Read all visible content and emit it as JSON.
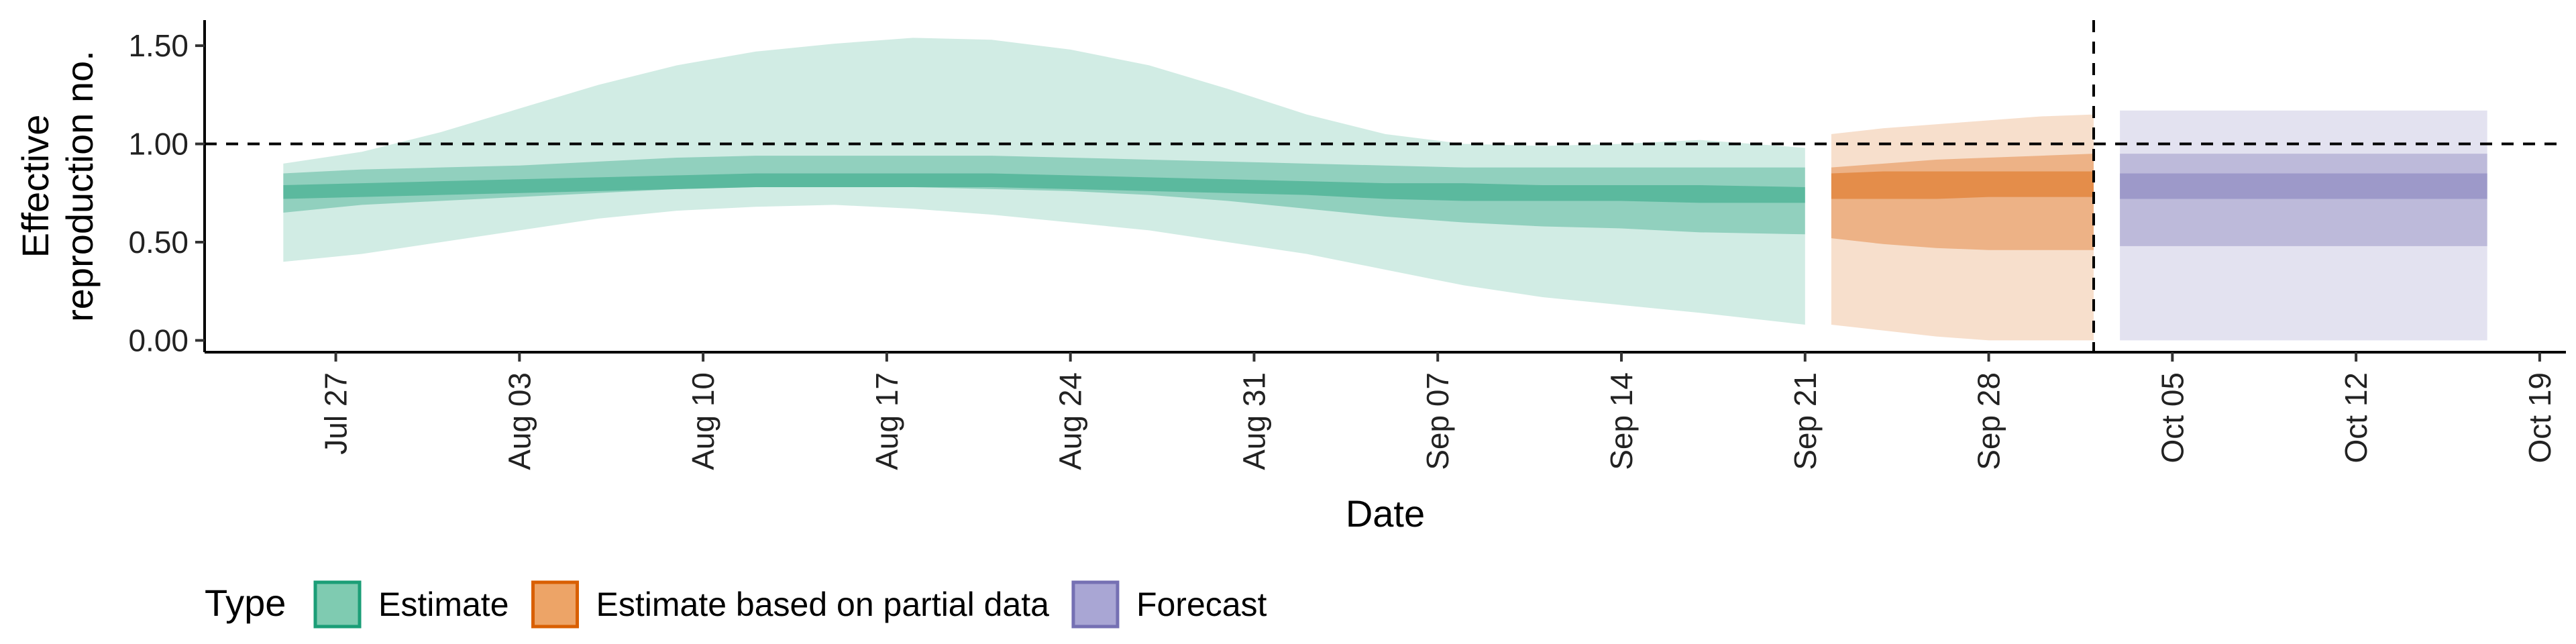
{
  "chart_data": {
    "type": "area",
    "xlabel": "Date",
    "ylabel_lines": [
      "Effective",
      "reproduction no."
    ],
    "ylim": [
      -0.06,
      1.63
    ],
    "y_ticks": [
      0.0,
      0.5,
      1.0,
      1.5
    ],
    "y_tick_labels": [
      "0.00",
      "0.50",
      "1.00",
      "1.50"
    ],
    "x_ticks": [
      "2020-07-27",
      "2020-08-03",
      "2020-08-10",
      "2020-08-17",
      "2020-08-24",
      "2020-08-31",
      "2020-09-07",
      "2020-09-14",
      "2020-09-21",
      "2020-09-28",
      "2020-10-05",
      "2020-10-12",
      "2020-10-19"
    ],
    "x_tick_labels": [
      "Jul 27",
      "Aug 03",
      "Aug 10",
      "Aug 17",
      "Aug 24",
      "Aug 31",
      "Sep 07",
      "Sep 14",
      "Sep 21",
      "Sep 28",
      "Oct 05",
      "Oct 12",
      "Oct 19"
    ],
    "xlim": [
      "2020-07-22",
      "2020-10-20"
    ],
    "reference_hline": 1.0,
    "reference_vline": "2020-10-02",
    "legend": {
      "title": "Type",
      "position": "bottom",
      "entries": [
        {
          "label": "Estimate",
          "fill": "#7fcbb1",
          "stroke": "#1b9e77"
        },
        {
          "label": "Estimate based on partial data",
          "fill": "#eda467",
          "stroke": "#d95f02"
        },
        {
          "label": "Forecast",
          "fill": "#a9a6d4",
          "stroke": "#7570b3"
        }
      ]
    },
    "series": [
      {
        "name": "Estimate",
        "color": "#1b9e77",
        "x": [
          "2020-07-25",
          "2020-07-28",
          "2020-07-31",
          "2020-08-03",
          "2020-08-06",
          "2020-08-09",
          "2020-08-12",
          "2020-08-15",
          "2020-08-18",
          "2020-08-21",
          "2020-08-24",
          "2020-08-27",
          "2020-08-30",
          "2020-09-02",
          "2020-09-05",
          "2020-09-08",
          "2020-09-11",
          "2020-09-14",
          "2020-09-17",
          "2020-09-21"
        ],
        "lower_90": [
          0.4,
          0.44,
          0.5,
          0.56,
          0.62,
          0.66,
          0.68,
          0.69,
          0.67,
          0.64,
          0.6,
          0.56,
          0.5,
          0.44,
          0.36,
          0.28,
          0.22,
          0.18,
          0.14,
          0.08
        ],
        "upper_90": [
          0.9,
          0.96,
          1.06,
          1.18,
          1.3,
          1.4,
          1.47,
          1.51,
          1.54,
          1.53,
          1.48,
          1.4,
          1.28,
          1.15,
          1.05,
          1.0,
          0.99,
          1.0,
          1.02,
          0.98
        ],
        "lower_50": [
          0.65,
          0.69,
          0.71,
          0.73,
          0.75,
          0.77,
          0.78,
          0.78,
          0.78,
          0.77,
          0.76,
          0.74,
          0.71,
          0.67,
          0.63,
          0.6,
          0.58,
          0.57,
          0.55,
          0.54
        ],
        "upper_50": [
          0.85,
          0.87,
          0.88,
          0.89,
          0.91,
          0.93,
          0.94,
          0.94,
          0.94,
          0.94,
          0.93,
          0.92,
          0.91,
          0.9,
          0.89,
          0.88,
          0.88,
          0.88,
          0.88,
          0.88
        ],
        "lower_20": [
          0.72,
          0.73,
          0.74,
          0.75,
          0.76,
          0.77,
          0.78,
          0.78,
          0.78,
          0.78,
          0.77,
          0.76,
          0.75,
          0.74,
          0.72,
          0.71,
          0.71,
          0.71,
          0.7,
          0.7
        ],
        "upper_20": [
          0.79,
          0.8,
          0.81,
          0.82,
          0.83,
          0.84,
          0.85,
          0.85,
          0.85,
          0.85,
          0.84,
          0.83,
          0.82,
          0.81,
          0.8,
          0.8,
          0.79,
          0.79,
          0.79,
          0.78
        ]
      },
      {
        "name": "Estimate based on partial data",
        "color": "#d95f02",
        "x": [
          "2020-09-22",
          "2020-09-24",
          "2020-09-26",
          "2020-09-28",
          "2020-09-30",
          "2020-10-02"
        ],
        "lower_90": [
          0.08,
          0.05,
          0.02,
          0.0,
          0.0,
          0.0
        ],
        "upper_90": [
          1.05,
          1.08,
          1.1,
          1.12,
          1.14,
          1.15
        ],
        "lower_50": [
          0.52,
          0.49,
          0.47,
          0.46,
          0.46,
          0.46
        ],
        "upper_50": [
          0.88,
          0.9,
          0.92,
          0.93,
          0.94,
          0.95
        ],
        "lower_20": [
          0.72,
          0.72,
          0.72,
          0.73,
          0.73,
          0.73
        ],
        "upper_20": [
          0.85,
          0.86,
          0.86,
          0.86,
          0.86,
          0.86
        ]
      },
      {
        "name": "Forecast",
        "color": "#7570b3",
        "x": [
          "2020-10-03",
          "2020-10-17"
        ],
        "lower_90": [
          0.0,
          0.0
        ],
        "upper_90": [
          1.17,
          1.17
        ],
        "lower_50": [
          0.48,
          0.48
        ],
        "upper_50": [
          0.95,
          0.95
        ],
        "lower_20": [
          0.72,
          0.72
        ],
        "upper_20": [
          0.85,
          0.85
        ]
      }
    ]
  }
}
